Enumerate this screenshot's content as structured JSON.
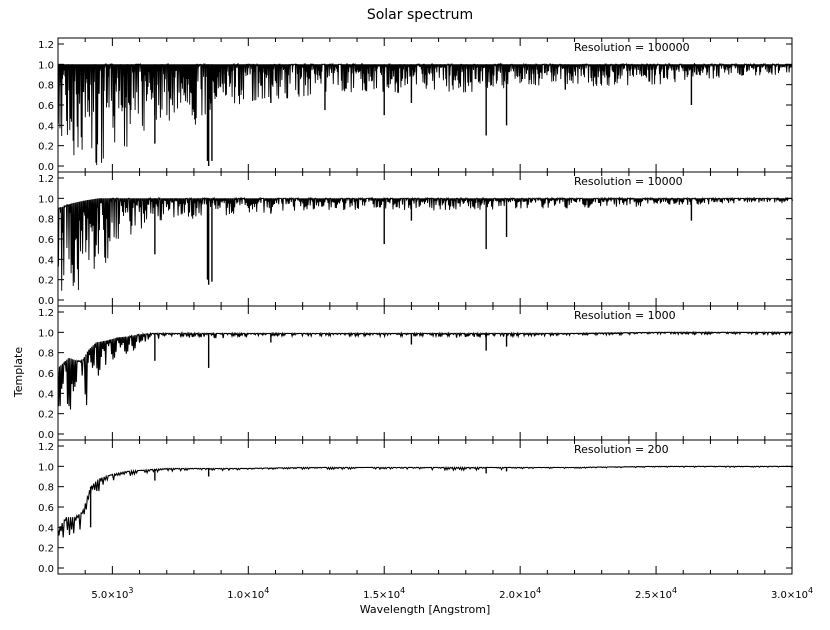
{
  "chart_data": {
    "type": "line",
    "title": "Solar spectrum",
    "xlabel": "Wavelength [Angstrom]",
    "ylabel": "Template",
    "xlim": [
      3000,
      30000
    ],
    "ylim": [
      0.0,
      1.2
    ],
    "grid": false,
    "x_ticks": [
      {
        "value": 5000,
        "mantissa": "5.0",
        "exponent": "3"
      },
      {
        "value": 10000,
        "mantissa": "1.0",
        "exponent": "4"
      },
      {
        "value": 15000,
        "mantissa": "1.5",
        "exponent": "4"
      },
      {
        "value": 20000,
        "mantissa": "2.0",
        "exponent": "4"
      },
      {
        "value": 25000,
        "mantissa": "2.5",
        "exponent": "4"
      },
      {
        "value": 30000,
        "mantissa": "3.0",
        "exponent": "4"
      }
    ],
    "x_tick_times": "×10",
    "y_ticks": [
      "0.0",
      "0.2",
      "0.4",
      "0.6",
      "0.8",
      "1.0",
      "1.2"
    ],
    "panels": [
      {
        "label": "Resolution = 100000",
        "resolution": 100000,
        "envelope": {
          "x": [
            3000,
            3500,
            4000,
            4500,
            5000,
            5500,
            6000,
            6500,
            7000,
            8000,
            9000,
            10000,
            12000,
            14000,
            16000,
            18000,
            20000,
            22000,
            25000,
            28000,
            30000
          ],
          "continuum": [
            1.0,
            1.0,
            1.0,
            1.0,
            1.0,
            1.0,
            1.0,
            1.0,
            1.0,
            1.0,
            1.0,
            1.0,
            1.0,
            1.0,
            1.0,
            1.0,
            1.0,
            1.0,
            1.0,
            1.0,
            1.0
          ],
          "lower": [
            0.0,
            0.0,
            0.0,
            0.0,
            0.08,
            0.18,
            0.3,
            0.4,
            0.45,
            0.4,
            0.55,
            0.6,
            0.68,
            0.72,
            0.72,
            0.72,
            0.78,
            0.78,
            0.8,
            0.88,
            0.9
          ]
        },
        "strong_lines": [
          {
            "x": 6563,
            "y": 0.22
          },
          {
            "x": 8498,
            "y": 0.05
          },
          {
            "x": 8542,
            "y": 0.0
          },
          {
            "x": 8662,
            "y": 0.05
          },
          {
            "x": 10830,
            "y": 0.62
          },
          {
            "x": 12820,
            "y": 0.55
          },
          {
            "x": 15000,
            "y": 0.5
          },
          {
            "x": 16000,
            "y": 0.62
          },
          {
            "x": 18750,
            "y": 0.3
          },
          {
            "x": 19500,
            "y": 0.4
          },
          {
            "x": 21660,
            "y": 0.75
          },
          {
            "x": 26300,
            "y": 0.6
          }
        ]
      },
      {
        "label": "Resolution = 10000",
        "resolution": 10000,
        "envelope": {
          "x": [
            3000,
            3500,
            4000,
            4500,
            5000,
            5500,
            6000,
            6500,
            7000,
            8000,
            9000,
            10000,
            12000,
            14000,
            16000,
            18000,
            20000,
            22000,
            25000,
            28000,
            30000
          ],
          "continuum": [
            0.9,
            0.95,
            0.98,
            1.0,
            1.0,
            1.0,
            1.0,
            1.0,
            1.0,
            1.0,
            1.0,
            1.0,
            1.0,
            1.0,
            1.0,
            1.0,
            1.0,
            1.0,
            1.0,
            1.0,
            1.0
          ],
          "lower": [
            0.0,
            0.0,
            0.05,
            0.25,
            0.45,
            0.6,
            0.68,
            0.74,
            0.78,
            0.8,
            0.83,
            0.85,
            0.88,
            0.88,
            0.88,
            0.88,
            0.9,
            0.9,
            0.92,
            0.95,
            0.95
          ]
        },
        "strong_lines": [
          {
            "x": 6563,
            "y": 0.45
          },
          {
            "x": 8498,
            "y": 0.2
          },
          {
            "x": 8542,
            "y": 0.15
          },
          {
            "x": 8662,
            "y": 0.18
          },
          {
            "x": 10830,
            "y": 0.85
          },
          {
            "x": 15000,
            "y": 0.55
          },
          {
            "x": 16000,
            "y": 0.78
          },
          {
            "x": 18750,
            "y": 0.5
          },
          {
            "x": 19500,
            "y": 0.62
          },
          {
            "x": 26300,
            "y": 0.78
          }
        ]
      },
      {
        "label": "Resolution = 1000",
        "resolution": 1000,
        "envelope": {
          "x": [
            3000,
            3400,
            3700,
            3900,
            4100,
            4400,
            4800,
            5200,
            5600,
            6000,
            6500,
            7000,
            8000,
            9000,
            10000,
            12000,
            14000,
            16000,
            18000,
            20000,
            22000,
            25000,
            28000,
            30000
          ],
          "continuum": [
            0.65,
            0.75,
            0.72,
            0.72,
            0.82,
            0.9,
            0.92,
            0.95,
            0.96,
            0.98,
            0.99,
            0.99,
            0.99,
            0.99,
            0.99,
            0.99,
            0.99,
            0.99,
            0.99,
            0.99,
            0.99,
            1.0,
            1.0,
            1.0
          ],
          "lower": [
            0.1,
            0.2,
            0.2,
            0.1,
            0.35,
            0.55,
            0.7,
            0.76,
            0.8,
            0.85,
            0.9,
            0.92,
            0.94,
            0.94,
            0.96,
            0.96,
            0.96,
            0.96,
            0.94,
            0.96,
            0.97,
            0.98,
            0.98,
            0.98
          ]
        },
        "strong_lines": [
          {
            "x": 6563,
            "y": 0.72
          },
          {
            "x": 8542,
            "y": 0.65
          },
          {
            "x": 10830,
            "y": 0.9
          },
          {
            "x": 16000,
            "y": 0.88
          },
          {
            "x": 18750,
            "y": 0.82
          },
          {
            "x": 19500,
            "y": 0.86
          }
        ]
      },
      {
        "label": "Resolution = 200",
        "resolution": 200,
        "envelope": {
          "x": [
            3000,
            3300,
            3600,
            3900,
            4200,
            4500,
            5000,
            5500,
            6000,
            6500,
            7000,
            8000,
            9000,
            10000,
            12000,
            14000,
            16000,
            18000,
            20000,
            22000,
            25000,
            28000,
            30000
          ],
          "continuum": [
            0.38,
            0.5,
            0.5,
            0.55,
            0.8,
            0.88,
            0.92,
            0.95,
            0.96,
            0.97,
            0.98,
            0.98,
            0.98,
            0.98,
            0.99,
            0.99,
            0.99,
            0.99,
            0.99,
            0.99,
            1.0,
            1.0,
            1.0
          ],
          "lower": [
            0.3,
            0.3,
            0.25,
            0.3,
            0.55,
            0.78,
            0.86,
            0.9,
            0.93,
            0.94,
            0.95,
            0.96,
            0.96,
            0.97,
            0.97,
            0.97,
            0.97,
            0.96,
            0.97,
            0.98,
            0.99,
            0.99,
            0.99
          ]
        },
        "strong_lines": [
          {
            "x": 4200,
            "y": 0.4
          },
          {
            "x": 6563,
            "y": 0.86
          },
          {
            "x": 8542,
            "y": 0.9
          },
          {
            "x": 18750,
            "y": 0.93
          },
          {
            "x": 19500,
            "y": 0.95
          }
        ]
      }
    ]
  }
}
